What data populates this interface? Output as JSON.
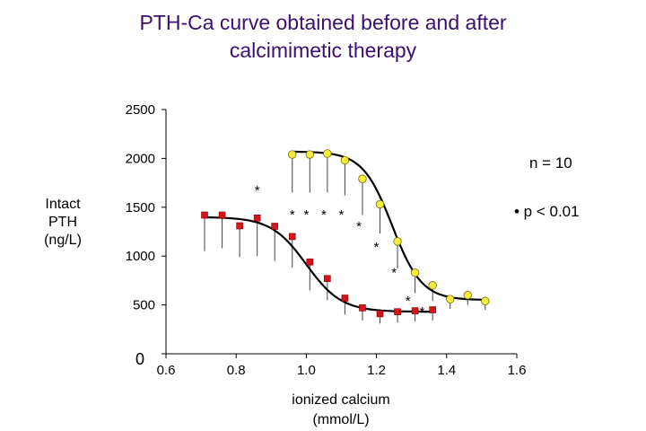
{
  "chart_data": {
    "type": "scatter",
    "title": [
      "PTH-Ca curve obtained before and after",
      "calcimimetic therapy"
    ],
    "xlabel": [
      "ionized calcium",
      "(mmol/L)"
    ],
    "ylabel": [
      "Intact",
      "PTH",
      "(ng/L)"
    ],
    "xlim": [
      0.6,
      1.6
    ],
    "ylim": [
      0,
      2500
    ],
    "x_ticks": [
      "0.6",
      "0.8",
      "1.0",
      "1.2",
      "1.4",
      "1.6"
    ],
    "y_ticks": [
      "0",
      "500",
      "1000",
      "1500",
      "2000",
      "2500"
    ],
    "series": [
      {
        "marker": "square",
        "color": "#d9121b",
        "points": [
          {
            "x": 0.71,
            "y": 1420,
            "err": 1050
          },
          {
            "x": 0.76,
            "y": 1420,
            "err": 1080
          },
          {
            "x": 0.81,
            "y": 1310,
            "err": 990
          },
          {
            "x": 0.86,
            "y": 1390,
            "err": 1000
          },
          {
            "x": 0.91,
            "y": 1305,
            "err": 950
          },
          {
            "x": 0.96,
            "y": 1200,
            "err": 880
          },
          {
            "x": 1.01,
            "y": 940,
            "err": 650
          },
          {
            "x": 1.06,
            "y": 770,
            "err": 550
          },
          {
            "x": 1.11,
            "y": 570,
            "err": 400
          },
          {
            "x": 1.16,
            "y": 470,
            "err": 340
          },
          {
            "x": 1.21,
            "y": 410,
            "err": 310
          },
          {
            "x": 1.26,
            "y": 430,
            "err": 320
          },
          {
            "x": 1.31,
            "y": 440,
            "err": 330
          },
          {
            "x": 1.36,
            "y": 450,
            "err": 340
          }
        ],
        "fit": {
          "top": 1400,
          "bottom": 430,
          "mid": 1.0,
          "slope": 0.05
        }
      },
      {
        "marker": "circle",
        "color": "#f4ee3f",
        "points": [
          {
            "x": 0.96,
            "y": 2040,
            "err": 1650
          },
          {
            "x": 1.01,
            "y": 2040,
            "err": 1650
          },
          {
            "x": 1.06,
            "y": 2050,
            "err": 1650
          },
          {
            "x": 1.11,
            "y": 1980,
            "err": 1620
          },
          {
            "x": 1.16,
            "y": 1790,
            "err": 1420
          },
          {
            "x": 1.21,
            "y": 1530,
            "err": 1230
          },
          {
            "x": 1.26,
            "y": 1150,
            "err": 870
          },
          {
            "x": 1.31,
            "y": 830,
            "err": 620
          },
          {
            "x": 1.36,
            "y": 700,
            "err": 540
          },
          {
            "x": 1.41,
            "y": 560,
            "err": 460
          },
          {
            "x": 1.46,
            "y": 600,
            "err": 500
          },
          {
            "x": 1.51,
            "y": 540,
            "err": 450
          }
        ],
        "fit": {
          "top": 2070,
          "bottom": 550,
          "mid": 1.245,
          "slope": 0.042
        }
      }
    ],
    "significance": [
      {
        "x": 0.86,
        "y": 1720
      },
      {
        "x": 0.96,
        "y": 1470
      },
      {
        "x": 1.0,
        "y": 1470
      },
      {
        "x": 1.05,
        "y": 1470
      },
      {
        "x": 1.1,
        "y": 1470
      },
      {
        "x": 1.15,
        "y": 1350
      },
      {
        "x": 1.2,
        "y": 1140
      },
      {
        "x": 1.25,
        "y": 880
      },
      {
        "x": 1.29,
        "y": 590
      },
      {
        "x": 1.33,
        "y": 480
      }
    ],
    "significance_mark": "*",
    "annotations": [
      "n = 10",
      "• p < 0.01"
    ]
  }
}
